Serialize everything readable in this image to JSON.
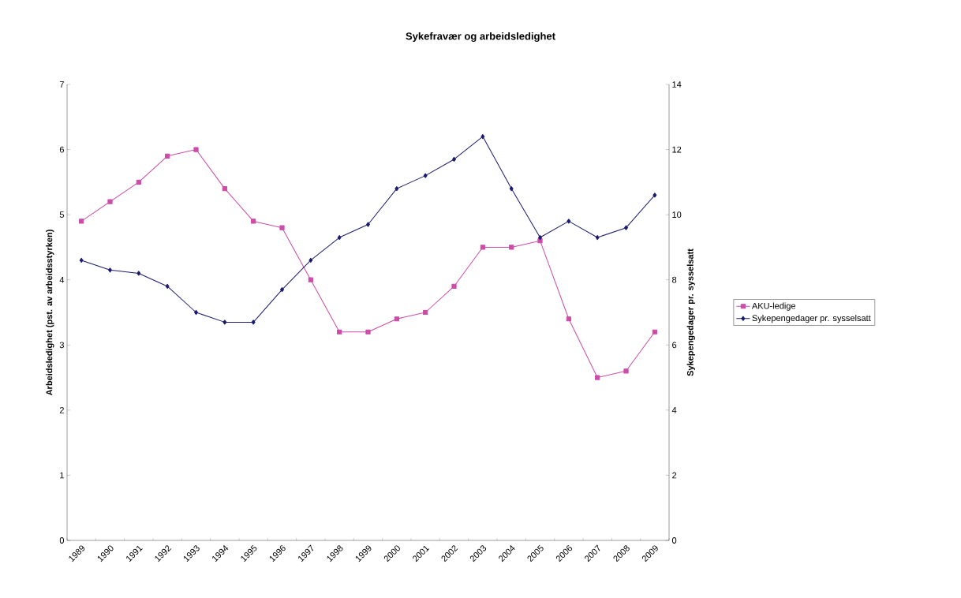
{
  "chart_data": {
    "type": "line",
    "title": "Sykefravær og arbeidsledighet",
    "ylabel": "Arbeidsledighet (pst. av arbeidsstyrken)",
    "y2label": "Sykepengedager pr. sysselsatt",
    "categories": [
      "1989",
      "1990",
      "1991",
      "1992",
      "1993",
      "1994",
      "1995",
      "1996",
      "1997",
      "1998",
      "1999",
      "2000",
      "2001",
      "2002",
      "2003",
      "2004",
      "2005",
      "2006",
      "2007",
      "2008",
      "2009"
    ],
    "series": [
      {
        "name": "AKU-ledige",
        "color": "#cc4ca8",
        "marker": "square",
        "values": [
          4.9,
          5.2,
          5.5,
          5.9,
          6.0,
          5.4,
          4.9,
          4.8,
          4.0,
          3.2,
          3.2,
          3.4,
          3.5,
          3.9,
          4.5,
          4.5,
          4.6,
          3.4,
          2.5,
          2.6,
          3.2
        ]
      },
      {
        "name": "Sykepengedager pr. sysselsatt",
        "color": "#1a1a6e",
        "marker": "diamond",
        "axis": "y2",
        "values": [
          8.6,
          8.3,
          8.2,
          7.8,
          7.0,
          6.7,
          6.7,
          7.7,
          8.6,
          9.3,
          9.7,
          10.8,
          11.2,
          11.7,
          12.4,
          10.8,
          9.3,
          9.8,
          9.3,
          9.6,
          10.6
        ]
      }
    ],
    "ylim": [
      0,
      7
    ],
    "yticks": [
      0,
      1,
      2,
      3,
      4,
      5,
      6,
      7
    ],
    "y2lim": [
      0,
      14
    ],
    "y2ticks": [
      0,
      2,
      4,
      6,
      8,
      10,
      12,
      14
    ],
    "legend": "right",
    "grid": false
  }
}
